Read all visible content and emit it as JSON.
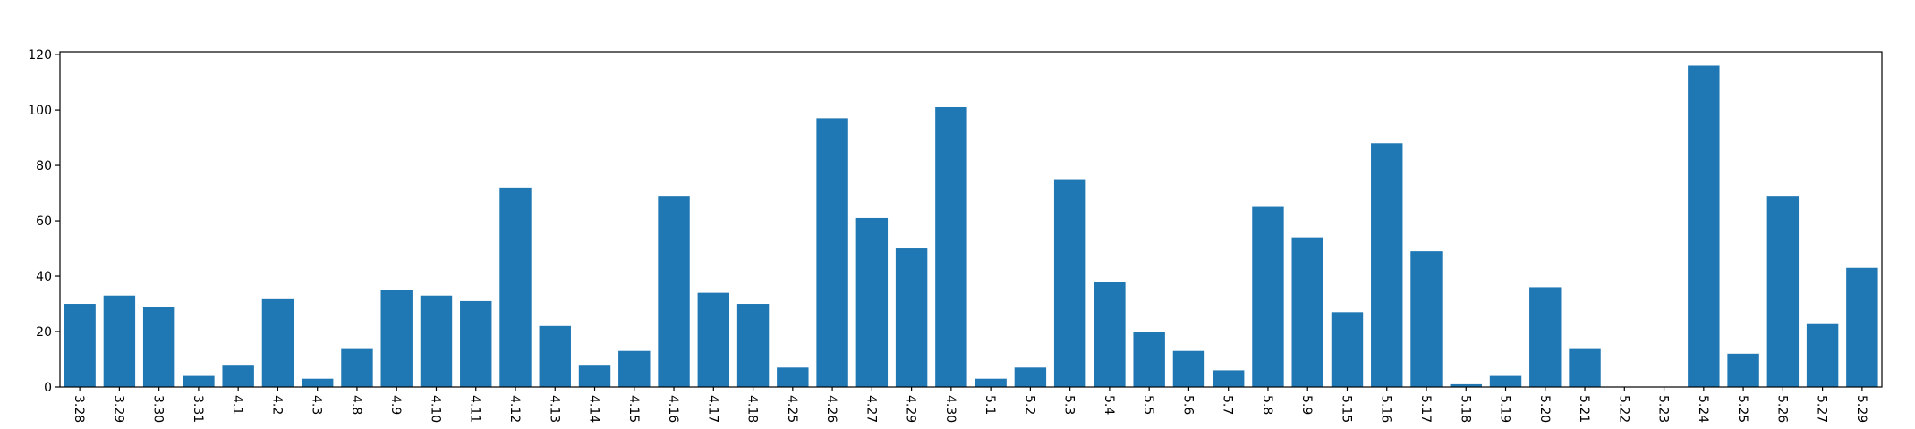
{
  "chart_data": {
    "type": "bar",
    "title": "",
    "xlabel": "",
    "ylabel": "",
    "ylim": [
      0,
      121
    ],
    "yticks": [
      0,
      20,
      40,
      60,
      80,
      100,
      120
    ],
    "grid": false,
    "bar_color": "#1f77b4",
    "categories": [
      "3.28",
      "3.29",
      "3.30",
      "3.31",
      "4.1",
      "4.2",
      "4.3",
      "4.8",
      "4.9",
      "4.10",
      "4.11",
      "4.12",
      "4.13",
      "4.14",
      "4.15",
      "4.16",
      "4.17",
      "4.18",
      "4.25",
      "4.26",
      "4.27",
      "4.29",
      "4.30",
      "5.1",
      "5.2",
      "5.3",
      "5.4",
      "5.5",
      "5.6",
      "5.7",
      "5.8",
      "5.9",
      "5.15",
      "5.16",
      "5.17",
      "5.18",
      "5.19",
      "5.20",
      "5.21",
      "5.22",
      "5.23",
      "5.24",
      "5.25",
      "5.26",
      "5.27",
      "5.29"
    ],
    "values": [
      30,
      33,
      29,
      4,
      8,
      32,
      3,
      14,
      35,
      33,
      31,
      72,
      22,
      8,
      13,
      69,
      34,
      30,
      7,
      97,
      61,
      50,
      101,
      3,
      7,
      75,
      38,
      20,
      13,
      6,
      65,
      54,
      27,
      88,
      49,
      1,
      4,
      36,
      14,
      0,
      0,
      116,
      12,
      69,
      23,
      43
    ]
  }
}
